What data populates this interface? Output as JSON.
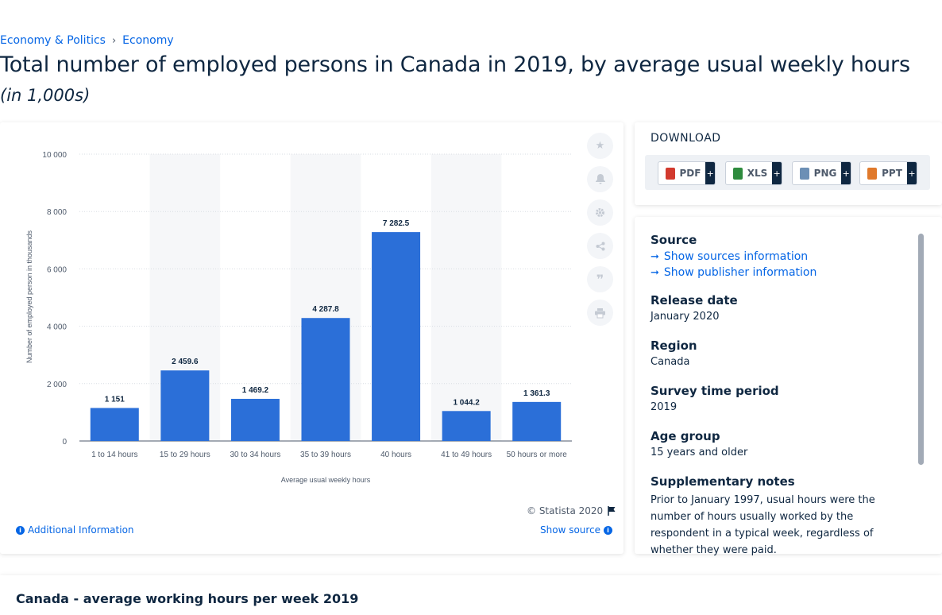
{
  "breadcrumb": {
    "items": [
      "Economy & Politics",
      "Economy"
    ],
    "separator": "›"
  },
  "page": {
    "title": "Total number of employed persons in Canada in 2019, by average usual weekly hours",
    "subtitle": "(in 1,000s)"
  },
  "chart_data": {
    "type": "bar",
    "categories": [
      "1 to 14 hours",
      "15 to 29 hours",
      "30 to 34 hours",
      "35 to 39 hours",
      "40 hours",
      "41 to 49 hours",
      "50 hours or more"
    ],
    "values": [
      1151,
      2459.6,
      1469.2,
      4287.8,
      7282.5,
      1044.2,
      1361.3
    ],
    "value_labels": [
      "1 151",
      "2 459.6",
      "1 469.2",
      "4 287.8",
      "7 282.5",
      "1 044.2",
      "1 361.3"
    ],
    "xlabel": "Average usual weekly hours",
    "ylabel": "Number of employed person in thousands",
    "yticks": [
      0,
      2000,
      4000,
      6000,
      8000,
      10000
    ],
    "ytick_labels": [
      "0",
      "2 000",
      "4 000",
      "6 000",
      "8 000",
      "10 000"
    ],
    "ylim": [
      0,
      10000
    ],
    "bar_color": "#2b6fd8",
    "grid": true
  },
  "chart_footer": {
    "copyright": "© Statista 2020",
    "additional_info": "Additional Information",
    "show_source": "Show source"
  },
  "toolbar": {
    "icons": [
      "star-icon",
      "bell-icon",
      "gear-icon",
      "share-icon",
      "quote-icon",
      "print-icon"
    ]
  },
  "download": {
    "title": "DOWNLOAD",
    "buttons": [
      {
        "label": "PDF",
        "color": "#d23a2e"
      },
      {
        "label": "XLS",
        "color": "#2e8b3e"
      },
      {
        "label": "PNG",
        "color": "#6c8fb5"
      },
      {
        "label": "PPT",
        "color": "#e0792b"
      }
    ]
  },
  "info": {
    "source_label": "Source",
    "show_sources": "Show sources information",
    "show_publisher": "Show publisher information",
    "release_label": "Release date",
    "release_value": "January 2020",
    "region_label": "Region",
    "region_value": "Canada",
    "survey_label": "Survey time period",
    "survey_value": "2019",
    "age_label": "Age group",
    "age_value": "15 years and older",
    "notes_label": "Supplementary notes",
    "notes_value": "Prior to January 1997, usual hours were the number of hours usually worked by the respondent in a typical week, regardless of whether they were paid."
  },
  "related": {
    "title": "Canada - average working hours per week 2019"
  }
}
